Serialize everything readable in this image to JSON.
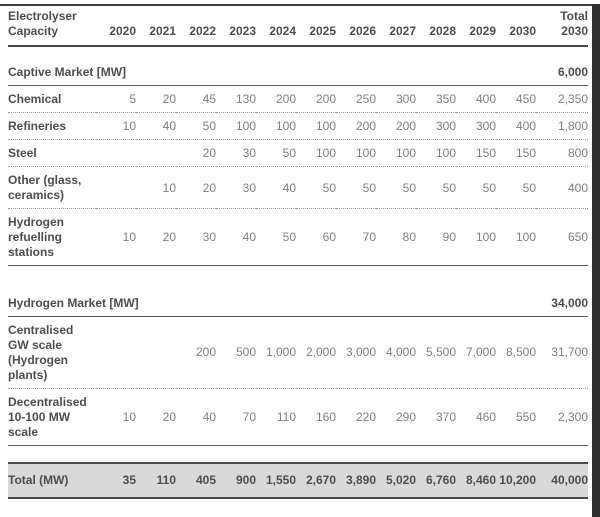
{
  "table": {
    "header": {
      "label": "Electrolyser Capacity",
      "years": [
        "2020",
        "2021",
        "2022",
        "2023",
        "2024",
        "2025",
        "2026",
        "2027",
        "2028",
        "2029",
        "2030"
      ],
      "total": "Total 2030"
    },
    "rows": [
      {
        "type": "section",
        "label": "Captive Market [MW]",
        "total": "6,000"
      },
      {
        "type": "data",
        "divider": "dotted",
        "label": "Chemical",
        "values": [
          "5",
          "20",
          "45",
          "130",
          "200",
          "200",
          "250",
          "300",
          "350",
          "400",
          "450"
        ],
        "total": "2,350"
      },
      {
        "type": "data",
        "divider": "dotted",
        "label": "Refineries",
        "values": [
          "10",
          "40",
          "50",
          "100",
          "100",
          "100",
          "200",
          "200",
          "300",
          "300",
          "400"
        ],
        "total": "1,800"
      },
      {
        "type": "data",
        "divider": "dotted",
        "label": "Steel",
        "values": [
          "",
          "",
          "20",
          "30",
          "50",
          "100",
          "100",
          "100",
          "100",
          "150",
          "150"
        ],
        "total": "800"
      },
      {
        "type": "data",
        "divider": "dotted",
        "label": "Other (glass, ceramics)",
        "values": [
          "",
          "10",
          "20",
          "30",
          "40",
          "50",
          "50",
          "50",
          "50",
          "50",
          "50"
        ],
        "total": "400"
      },
      {
        "type": "data",
        "divider": "solid",
        "label": "Hydrogen refuelling stations",
        "values": [
          "10",
          "20",
          "30",
          "40",
          "50",
          "60",
          "70",
          "80",
          "90",
          "100",
          "100"
        ],
        "total": "650"
      },
      {
        "type": "spacer"
      },
      {
        "type": "section",
        "label": "Hydrogen Market [MW]",
        "total": "34,000"
      },
      {
        "type": "data",
        "divider": "dotted",
        "label": "Centralised GW scale (Hydrogen plants)",
        "values": [
          "",
          "",
          "200",
          "500",
          "1,000",
          "2,000",
          "3,000",
          "4,000",
          "5,500",
          "7,000",
          "8,500"
        ],
        "total": "31,700"
      },
      {
        "type": "data",
        "divider": "solid",
        "label": "Decentralised 10-100 MW scale",
        "values": [
          "10",
          "20",
          "40",
          "70",
          "110",
          "160",
          "220",
          "290",
          "370",
          "460",
          "550"
        ],
        "total": "2,300"
      },
      {
        "type": "spacer-lg"
      },
      {
        "type": "total",
        "label": "Total (MW)",
        "values": [
          "35",
          "110",
          "405",
          "900",
          "1,550",
          "2,670",
          "3,890",
          "5,020",
          "6,760",
          "8,460",
          "10,200"
        ],
        "total": "40,000"
      }
    ]
  }
}
